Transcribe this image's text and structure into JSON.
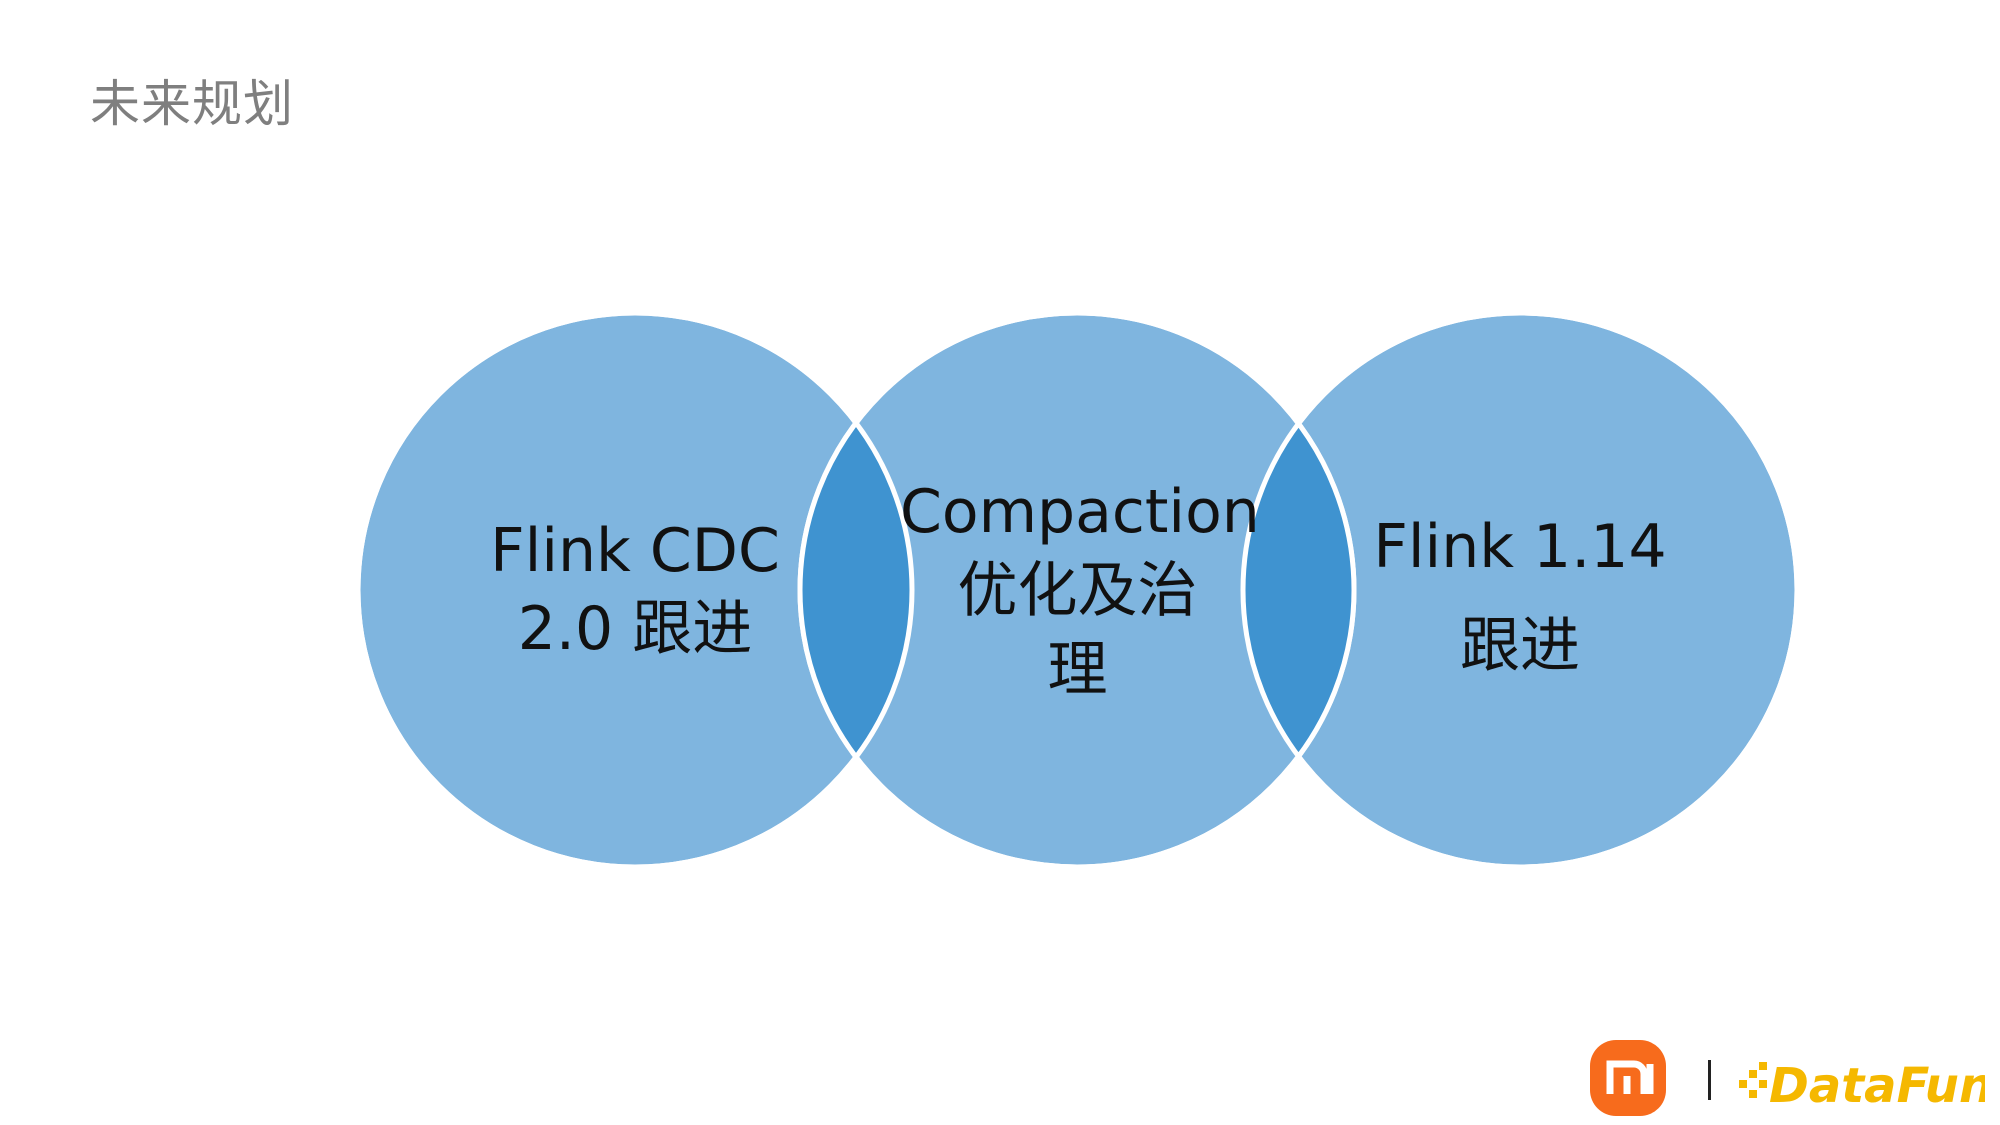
{
  "title": "未来规划",
  "colors": {
    "circle_fill": "#7fb5df",
    "overlap_fill": "#3f93d0",
    "circle_stroke": "#ffffff",
    "title_color": "#7f7f7f",
    "logo_orange": "#f76b1c",
    "datafun_yellow": "#f5b800"
  },
  "circles": [
    {
      "label_lines": [
        "Flink CDC",
        "2.0 跟进"
      ]
    },
    {
      "label_lines": [
        "Compaction",
        "优化及治",
        "理"
      ]
    },
    {
      "label_lines": [
        "Flink 1.14",
        "跟进"
      ]
    }
  ],
  "logos": {
    "left_logo": "mi-logo",
    "right_logo": "DataFun."
  }
}
